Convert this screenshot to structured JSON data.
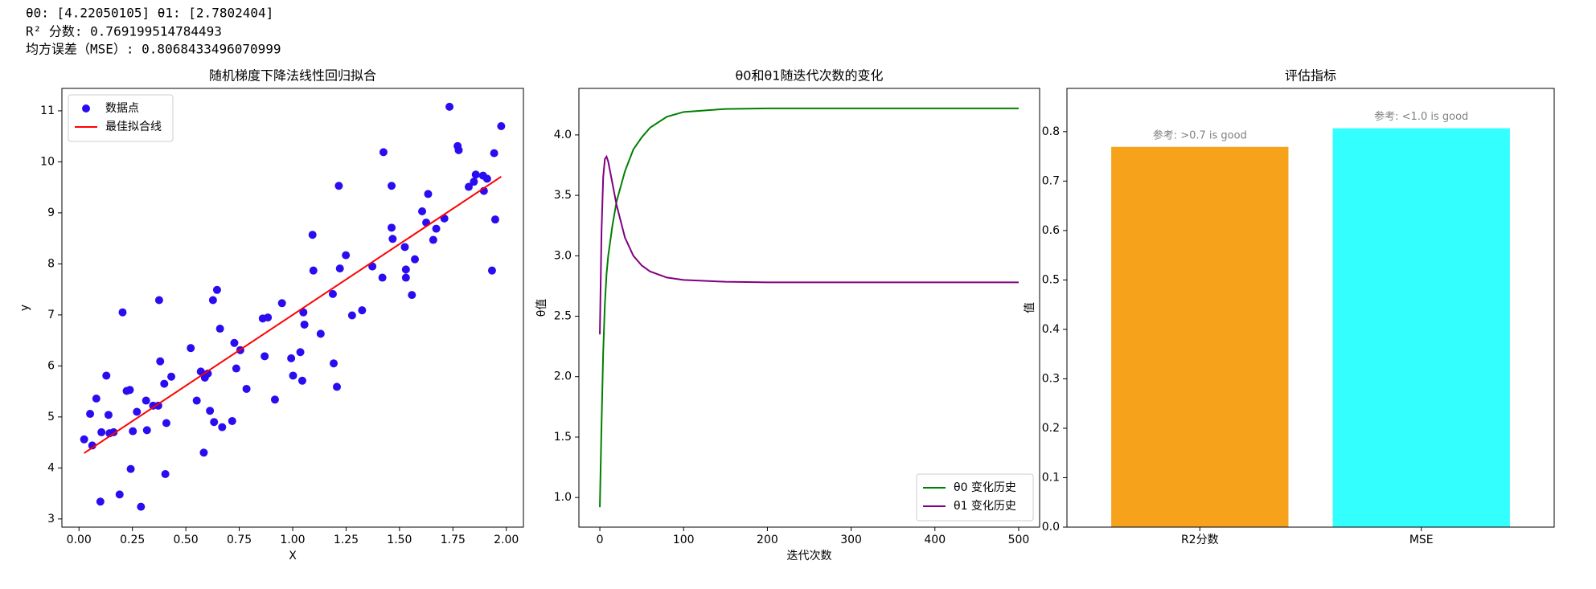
{
  "output_lines": [
    "θ0: [4.22050105] θ1: [2.7802404]",
    "R² 分数: 0.769199514784493",
    "均方误差（MSE）: 0.8068433496070999"
  ],
  "chart_data": [
    {
      "type": "scatter",
      "title": "随机梯度下降法线性回归拟合",
      "x_label": "X",
      "y_label": "y",
      "legend": "upper left",
      "xlim": [
        -0.08,
        2.08
      ],
      "ylim": [
        2.84,
        11.44
      ],
      "xticks": [
        {
          "value": 0,
          "label": "0.00"
        },
        {
          "value": 0.25,
          "label": "0.25"
        },
        {
          "value": 0.5,
          "label": "0.50"
        },
        {
          "value": 0.75,
          "label": "0.75"
        },
        {
          "value": 1,
          "label": "1.00"
        },
        {
          "value": 1.25,
          "label": "1.25"
        },
        {
          "value": 1.5,
          "label": "1.50"
        },
        {
          "value": 1.75,
          "label": "1.75"
        },
        {
          "value": 2,
          "label": "2.00"
        }
      ],
      "yticks": [
        3,
        4,
        5,
        6,
        7,
        8,
        9,
        10,
        11
      ],
      "series": [
        {
          "name": "数据点",
          "color": "#2a0cf0",
          "mark": "point",
          "x": [
            0.024,
            0.052,
            0.062,
            0.081,
            0.1,
            0.105,
            0.128,
            0.138,
            0.143,
            0.162,
            0.19,
            0.204,
            0.223,
            0.238,
            0.242,
            0.252,
            0.271,
            0.29,
            0.314,
            0.318,
            0.347,
            0.371,
            0.375,
            0.38,
            0.399,
            0.404,
            0.409,
            0.432,
            0.523,
            0.551,
            0.57,
            0.584,
            0.589,
            0.603,
            0.613,
            0.627,
            0.632,
            0.646,
            0.66,
            0.67,
            0.717,
            0.727,
            0.736,
            0.755,
            0.784,
            0.86,
            0.869,
            0.884,
            0.917,
            0.95,
            0.993,
            1.002,
            1.036,
            1.045,
            1.05,
            1.055,
            1.093,
            1.097,
            1.131,
            1.188,
            1.192,
            1.207,
            1.216,
            1.221,
            1.249,
            1.278,
            1.325,
            1.373,
            1.42,
            1.425,
            1.463,
            1.463,
            1.468,
            1.525,
            1.53,
            1.53,
            1.558,
            1.572,
            1.606,
            1.625,
            1.634,
            1.658,
            1.672,
            1.71,
            1.734,
            1.772,
            1.777,
            1.824,
            1.848,
            1.857,
            1.891,
            1.895,
            1.91,
            1.933,
            1.943,
            1.948,
            1.976
          ],
          "values": [
            4.56,
            5.06,
            4.44,
            5.36,
            3.34,
            4.7,
            5.81,
            5.04,
            4.68,
            4.7,
            3.48,
            7.05,
            5.51,
            5.53,
            3.98,
            4.72,
            5.1,
            3.24,
            5.32,
            4.74,
            5.22,
            5.22,
            7.29,
            6.09,
            5.65,
            3.88,
            4.88,
            5.79,
            6.35,
            5.32,
            5.89,
            4.3,
            5.77,
            5.85,
            5.12,
            7.29,
            4.9,
            7.49,
            6.73,
            4.8,
            4.92,
            6.45,
            5.95,
            6.31,
            5.55,
            6.93,
            6.19,
            6.95,
            5.34,
            7.23,
            6.15,
            5.81,
            6.27,
            5.71,
            7.05,
            6.81,
            8.57,
            7.87,
            6.63,
            7.41,
            6.05,
            5.59,
            9.53,
            7.91,
            8.17,
            6.99,
            7.09,
            7.95,
            7.73,
            10.19,
            9.53,
            8.71,
            8.49,
            8.33,
            7.73,
            7.89,
            7.39,
            8.09,
            9.03,
            8.81,
            9.37,
            8.47,
            8.69,
            8.89,
            11.08,
            10.31,
            10.23,
            9.51,
            9.61,
            9.75,
            9.73,
            9.43,
            9.67,
            7.87,
            10.17,
            8.87,
            10.7
          ]
        },
        {
          "name": "最佳拟合线",
          "color": "#ff0000",
          "mark": "line",
          "x": [
            0.024,
            1.976
          ],
          "values": [
            4.29,
            9.71
          ]
        }
      ]
    },
    {
      "type": "line",
      "title": "θ0和θ1随迭代次数的变化",
      "x_label": "迭代次数",
      "y_label": "θ值",
      "legend": "lower right",
      "xlim": [
        -25,
        525
      ],
      "ylim": [
        0.755,
        4.385
      ],
      "xticks": [
        0,
        100,
        200,
        300,
        400,
        500
      ],
      "yticks": [
        {
          "value": 1,
          "label": "1.0"
        },
        {
          "value": 1.5,
          "label": "1.5"
        },
        {
          "value": 2,
          "label": "2.0"
        },
        {
          "value": 2.5,
          "label": "2.5"
        },
        {
          "value": 3,
          "label": "3.0"
        },
        {
          "value": 3.5,
          "label": "3.5"
        },
        {
          "value": 4,
          "label": "4.0"
        }
      ],
      "x": [
        0,
        2,
        4,
        6,
        8,
        10,
        15,
        20,
        30,
        40,
        50,
        60,
        80,
        100,
        150,
        200,
        300,
        400,
        500
      ],
      "series": [
        {
          "name": "θ0 变化历史",
          "color": "#008000",
          "values": [
            0.92,
            1.6,
            2.2,
            2.6,
            2.85,
            3.0,
            3.25,
            3.45,
            3.7,
            3.88,
            3.98,
            4.06,
            4.15,
            4.19,
            4.215,
            4.22,
            4.22,
            4.22,
            4.22
          ]
        },
        {
          "name": "θ1 变化历史",
          "color": "#800080",
          "values": [
            2.35,
            3.2,
            3.65,
            3.8,
            3.82,
            3.78,
            3.6,
            3.42,
            3.15,
            3.0,
            2.92,
            2.87,
            2.82,
            2.8,
            2.785,
            2.78,
            2.78,
            2.78,
            2.78
          ]
        }
      ]
    },
    {
      "type": "bar",
      "title": "评估指标",
      "y_label": "值",
      "categories": [
        "R2分数",
        "MSE"
      ],
      "values": [
        0.769199514784493,
        0.8068433496070999
      ],
      "colors": [
        "#f7a21b",
        "#33ffff"
      ],
      "annotations": [
        "参考: >0.7 is good",
        "参考: <1.0 is good"
      ],
      "ylim": [
        0,
        0.8875
      ],
      "yticks": [
        {
          "value": 0,
          "label": "0.0"
        },
        {
          "value": 0.1,
          "label": "0.1"
        },
        {
          "value": 0.2,
          "label": "0.2"
        },
        {
          "value": 0.3,
          "label": "0.3"
        },
        {
          "value": 0.4,
          "label": "0.4"
        },
        {
          "value": 0.5,
          "label": "0.5"
        },
        {
          "value": 0.6,
          "label": "0.6"
        },
        {
          "value": 0.7,
          "label": "0.7"
        },
        {
          "value": 0.8,
          "label": "0.8"
        }
      ]
    }
  ]
}
